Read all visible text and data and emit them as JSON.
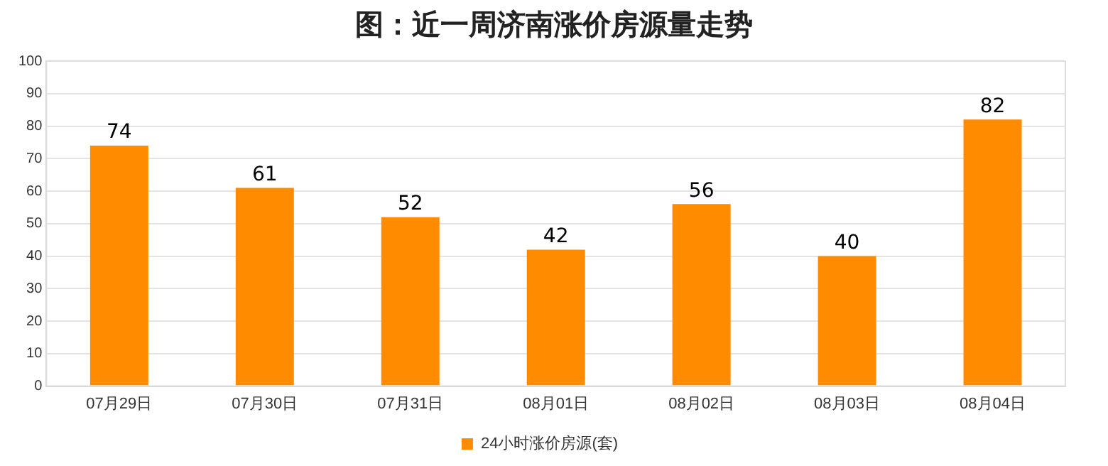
{
  "chart_data": {
    "type": "bar",
    "title": "图：近一周济南涨价房源量走势",
    "categories": [
      "07月29日",
      "07月30日",
      "07月31日",
      "08月01日",
      "08月02日",
      "08月03日",
      "08月04日"
    ],
    "series": [
      {
        "name": "24小时涨价房源(套)",
        "color": "#ff8c00",
        "values": [
          74,
          61,
          52,
          42,
          56,
          40,
          82
        ]
      }
    ],
    "ylim": [
      0,
      100
    ],
    "yticks": [
      0,
      10,
      20,
      30,
      40,
      50,
      60,
      70,
      80,
      90,
      100
    ],
    "grid": "y",
    "legend": "bottom",
    "data_labels": true
  }
}
